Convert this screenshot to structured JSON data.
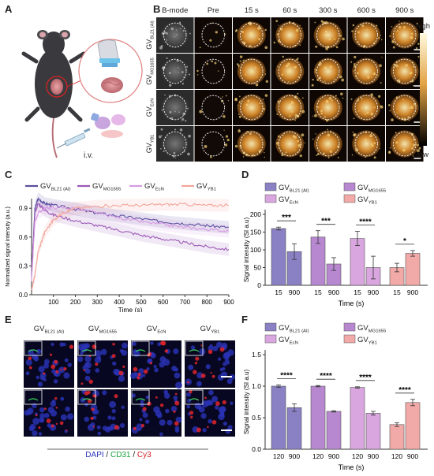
{
  "panels": {
    "A": {
      "label": "A",
      "route": "i.v."
    },
    "B": {
      "label": "B",
      "columns": [
        "B-mode",
        "Pre",
        "15 s",
        "60 s",
        "300 s",
        "600 s",
        "900 s"
      ],
      "rows": [
        {
          "base": "GV",
          "sub": "BL21 (AI)"
        },
        {
          "base": "GV",
          "sub": "MG1655"
        },
        {
          "base": "GV",
          "sub": "EcN"
        },
        {
          "base": "GV",
          "sub": "YB1"
        }
      ],
      "colorbar_high": "high",
      "colorbar_low": "low"
    },
    "C": {
      "label": "C"
    },
    "D": {
      "label": "D"
    },
    "E": {
      "label": "E",
      "columns": [
        {
          "base": "GV",
          "sub": "BL21 (AI)"
        },
        {
          "base": "GV",
          "sub": "MG1655"
        },
        {
          "base": "GV",
          "sub": "EcN"
        },
        {
          "base": "GV",
          "sub": "YB1"
        }
      ],
      "stain": {
        "dapi": "DAPI",
        "sep1": " / ",
        "cd31": "CD31",
        "sep2": " / ",
        "cy3": "Cy3"
      }
    },
    "F": {
      "label": "F"
    }
  },
  "colors": {
    "BL21": "#5b4fa0",
    "MG1655": "#9b59b6",
    "EcN": "#d79be3",
    "YB1": "#f3a39a",
    "D_fill": [
      "#8a80c4",
      "#b788d0",
      "#d9a6df",
      "#f2aaa8"
    ],
    "F_fill": [
      "#8a80c4",
      "#b788d0",
      "#d9a6df",
      "#f2aaa8"
    ]
  },
  "legend": [
    {
      "base": "GV",
      "sub": "BL21 (AI)"
    },
    {
      "base": "GV",
      "sub": "MG1655"
    },
    {
      "base": "GV",
      "sub": "EcN"
    },
    {
      "base": "GV",
      "sub": "YB1"
    }
  ],
  "chart_data": [
    {
      "id": "C",
      "type": "line",
      "xlabel": "Time (s)",
      "ylabel": "Normalized signal intensity (a.u.)",
      "xlim": [
        0,
        900
      ],
      "ylim": [
        0,
        1.0
      ],
      "xticks": [
        100,
        200,
        300,
        400,
        500,
        600,
        700,
        800,
        900
      ],
      "yticks": [
        0.0,
        0.3,
        0.6,
        0.9
      ],
      "series": [
        {
          "name": "GV BL21 (AI)",
          "x": [
            0,
            15,
            30,
            60,
            100,
            200,
            300,
            400,
            500,
            600,
            700,
            800,
            900
          ],
          "y": [
            0.2,
            0.9,
            1.0,
            0.95,
            0.93,
            0.89,
            0.85,
            0.82,
            0.79,
            0.76,
            0.74,
            0.72,
            0.7
          ]
        },
        {
          "name": "GV MG1655",
          "x": [
            0,
            15,
            30,
            60,
            100,
            200,
            300,
            400,
            500,
            600,
            700,
            800,
            900
          ],
          "y": [
            0.2,
            0.85,
            0.95,
            0.88,
            0.83,
            0.77,
            0.72,
            0.67,
            0.62,
            0.58,
            0.54,
            0.5,
            0.47
          ]
        },
        {
          "name": "GV EcN",
          "x": [
            0,
            15,
            30,
            60,
            100,
            200,
            300,
            400,
            500,
            600,
            700,
            800,
            900
          ],
          "y": [
            0.15,
            0.75,
            0.85,
            0.9,
            0.91,
            0.9,
            0.85,
            0.8,
            0.76,
            0.73,
            0.7,
            0.68,
            0.66
          ]
        },
        {
          "name": "GV YB1",
          "x": [
            0,
            15,
            30,
            60,
            100,
            150,
            200,
            300,
            400,
            500,
            600,
            700,
            800,
            900
          ],
          "y": [
            0.05,
            0.2,
            0.45,
            0.65,
            0.78,
            0.86,
            0.9,
            0.92,
            0.93,
            0.93,
            0.94,
            0.94,
            0.93,
            0.93
          ]
        }
      ]
    },
    {
      "id": "D",
      "type": "bar",
      "xlabel": "Time (s)",
      "ylabel": "Signal intensity (SI a.u)",
      "ylim": [
        0,
        200
      ],
      "yticks": [
        0,
        50,
        100,
        150,
        200
      ],
      "groups": [
        {
          "name": "GV BL21 (AI)",
          "categories": [
            "15",
            "900"
          ],
          "values": [
            160,
            95
          ],
          "errors": [
            4,
            22
          ],
          "sig": "***"
        },
        {
          "name": "GV MG1655",
          "categories": [
            "15",
            "900"
          ],
          "values": [
            136,
            60
          ],
          "errors": [
            18,
            18
          ],
          "sig": "***"
        },
        {
          "name": "GV EcN",
          "categories": [
            "15",
            "900"
          ],
          "values": [
            132,
            50
          ],
          "errors": [
            20,
            32
          ],
          "sig": "****"
        },
        {
          "name": "GV YB1",
          "categories": [
            "15",
            "900"
          ],
          "values": [
            50,
            90
          ],
          "errors": [
            12,
            8
          ],
          "sig": "*"
        }
      ]
    },
    {
      "id": "F",
      "type": "bar",
      "xlabel": "Time (s)",
      "ylabel": "Signal intensity (SI a.u)",
      "ylim": [
        0,
        1.5
      ],
      "yticks": [
        0.0,
        0.5,
        1.0,
        1.5
      ],
      "groups": [
        {
          "name": "GV BL21 (AI)",
          "categories": [
            "120",
            "900"
          ],
          "values": [
            1.0,
            0.66
          ],
          "errors": [
            0.02,
            0.06
          ],
          "sig": "****"
        },
        {
          "name": "GV MG1655",
          "categories": [
            "120",
            "900"
          ],
          "values": [
            1.0,
            0.6
          ],
          "errors": [
            0.01,
            0.01
          ],
          "sig": "****"
        },
        {
          "name": "GV EcN",
          "categories": [
            "120",
            "900"
          ],
          "values": [
            0.98,
            0.57
          ],
          "errors": [
            0.01,
            0.03
          ],
          "sig": "****"
        },
        {
          "name": "GV YB1",
          "categories": [
            "120",
            "900"
          ],
          "values": [
            0.39,
            0.74
          ],
          "errors": [
            0.03,
            0.05
          ],
          "sig": "****"
        }
      ]
    }
  ]
}
